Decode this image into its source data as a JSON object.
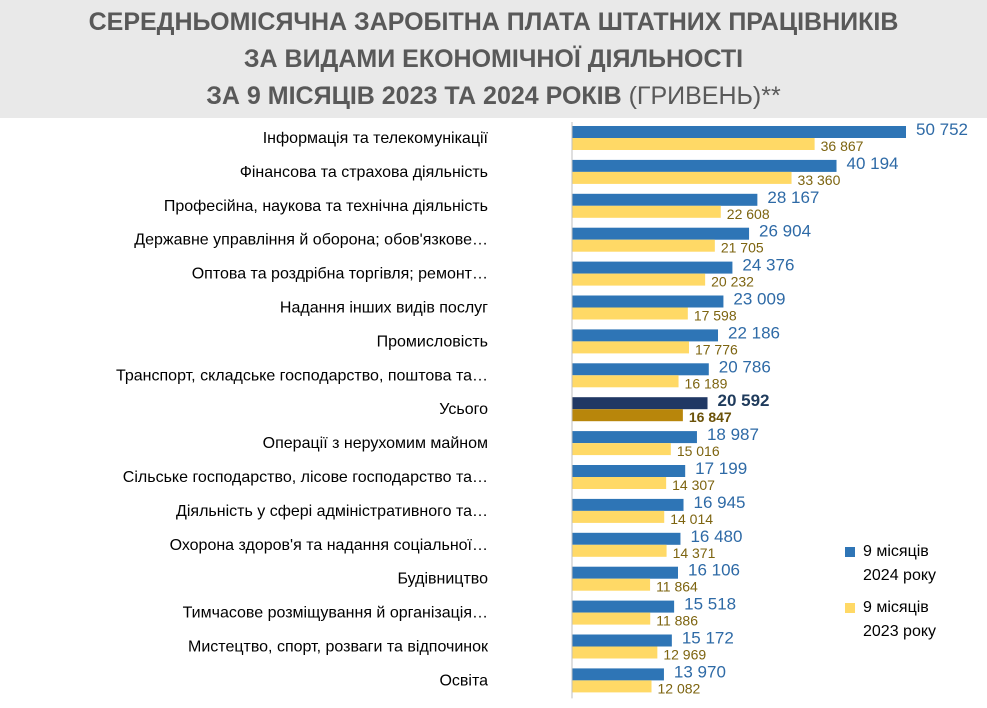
{
  "title": {
    "line1": "СЕРЕДНЬОМІСЯЧНА ЗАРОБІТНА ПЛАТА ШТАТНИХ ПРАЦІВНИКІВ",
    "line2": "ЗА ВИДАМИ ЕКОНОМІЧНОЇ ДІЯЛЬНОСТІ",
    "line3_bold": "ЗА 9 МІСЯЦІВ 2023 ТА 2024 РОКІВ",
    "line3_light": "(ГРИВЕНЬ)**"
  },
  "legend": {
    "s2024_line1": "9 місяців",
    "s2024_line2": "2024 року",
    "s2023_line1": "9 місяців",
    "s2023_line2": "2023 року"
  },
  "colors": {
    "s2024": "#2e75b6",
    "s2023": "#ffd966",
    "total2024": "#203864",
    "total2023": "#b8860b"
  },
  "chart_data": {
    "type": "bar",
    "orientation": "horizontal",
    "xlim": [
      0,
      52000
    ],
    "grid": false,
    "legend_position": "right",
    "categories": [
      "Інформація та телекомунікації",
      "Фінансова та страхова діяльність",
      "Професійна, наукова та технічна діяльність",
      "Державне управління й оборона; обов'язкове…",
      "Оптова та роздрібна торгівля; ремонт…",
      "Надання інших видів послуг",
      "Промисловість",
      "Транспорт, складське господарство, поштова та…",
      "Усього",
      "Операції з нерухомим майном",
      "Сільське господарство, лісове господарство та…",
      "Діяльність у сфері адміністративного та…",
      "Охорона здоров'я та надання соціальної…",
      "Будівництво",
      "Тимчасове розміщування й організація…",
      "Мистецтво, спорт, розваги та відпочинок",
      "Освіта"
    ],
    "highlight_category": "Усього",
    "series": [
      {
        "name": "9 місяців 2024 року",
        "values": [
          50752,
          40194,
          28167,
          26904,
          24376,
          23009,
          22186,
          20786,
          20592,
          18987,
          17199,
          16945,
          16480,
          16106,
          15518,
          15172,
          13970
        ],
        "labels": [
          "50 752",
          "40 194",
          "28 167",
          "26 904",
          "24 376",
          "23 009",
          "22 186",
          "20 786",
          "20 592",
          "18 987",
          "17 199",
          "16 945",
          "16 480",
          "16 106",
          "15 518",
          "15 172",
          "13 970"
        ]
      },
      {
        "name": "9 місяців 2023 року",
        "values": [
          36867,
          33360,
          22608,
          21705,
          20232,
          17598,
          17776,
          16189,
          16847,
          15016,
          14307,
          14014,
          14371,
          11864,
          11886,
          12969,
          12082
        ],
        "labels": [
          "36 867",
          "33 360",
          "22 608",
          "21 705",
          "20 232",
          "17 598",
          "17 776",
          "16 189",
          "16 847",
          "15 016",
          "14 307",
          "14 014",
          "14 371",
          "11 864",
          "11 886",
          "12 969",
          "12 082"
        ]
      }
    ]
  }
}
